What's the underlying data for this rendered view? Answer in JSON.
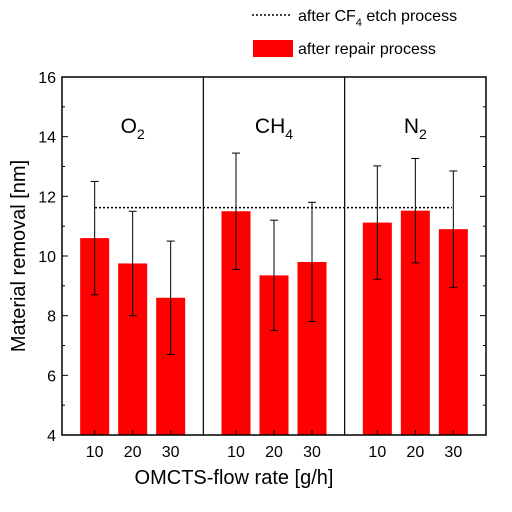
{
  "chart_data": {
    "type": "bar",
    "xlabel": "OMCTS-flow rate [g/h]",
    "ylabel": "Material removal [nm]",
    "ylim": [
      4,
      16
    ],
    "yticks": [
      4,
      6,
      8,
      10,
      12,
      14,
      16
    ],
    "groups": [
      {
        "label": "O",
        "subscript": "2",
        "categories": [
          "10",
          "20",
          "30"
        ],
        "values": [
          10.6,
          9.75,
          8.6
        ],
        "errors": [
          1.9,
          1.75,
          1.9
        ]
      },
      {
        "label": "CH",
        "subscript": "4",
        "categories": [
          "10",
          "20",
          "30"
        ],
        "values": [
          11.5,
          9.35,
          9.8
        ],
        "errors": [
          1.95,
          1.85,
          2.0
        ]
      },
      {
        "label": "N",
        "subscript": "2",
        "categories": [
          "10",
          "20",
          "30"
        ],
        "values": [
          11.12,
          11.52,
          10.9
        ],
        "errors": [
          1.9,
          1.75,
          1.95
        ]
      }
    ],
    "reference_line": {
      "value": 11.62,
      "style": "dotted"
    },
    "legend": [
      {
        "type": "line",
        "text_before": "after  CF",
        "subscript": "4",
        "text_after": " etch  process"
      },
      {
        "type": "bar",
        "text": "after repair process"
      }
    ],
    "bar_color": "#ff0000",
    "grid": false,
    "legend_position": "top-right"
  }
}
